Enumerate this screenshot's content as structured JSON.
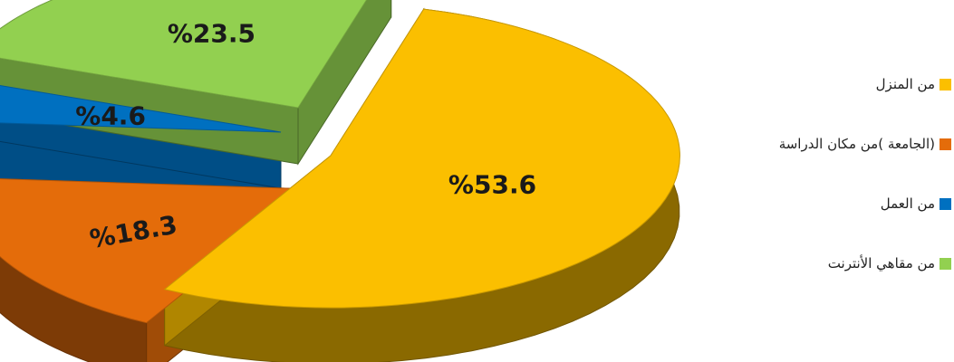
{
  "chart_data": {
    "type": "pie",
    "title": "",
    "legend": "right",
    "slices": [
      {
        "label": "من المنزل",
        "value": 53.6,
        "display": "%53.6",
        "color": "#fbbf00"
      },
      {
        "label": "(الجامعة )من مكان الدراسة",
        "value": 18.3,
        "display": "%18.3",
        "color": "#e46c0a"
      },
      {
        "label": "من العمل",
        "value": 4.6,
        "display": "%4.6",
        "color": "#0070c0"
      },
      {
        "label": "من مقاهي الأنترنت",
        "value": 23.5,
        "display": "%23.5",
        "color": "#92d050"
      }
    ]
  }
}
